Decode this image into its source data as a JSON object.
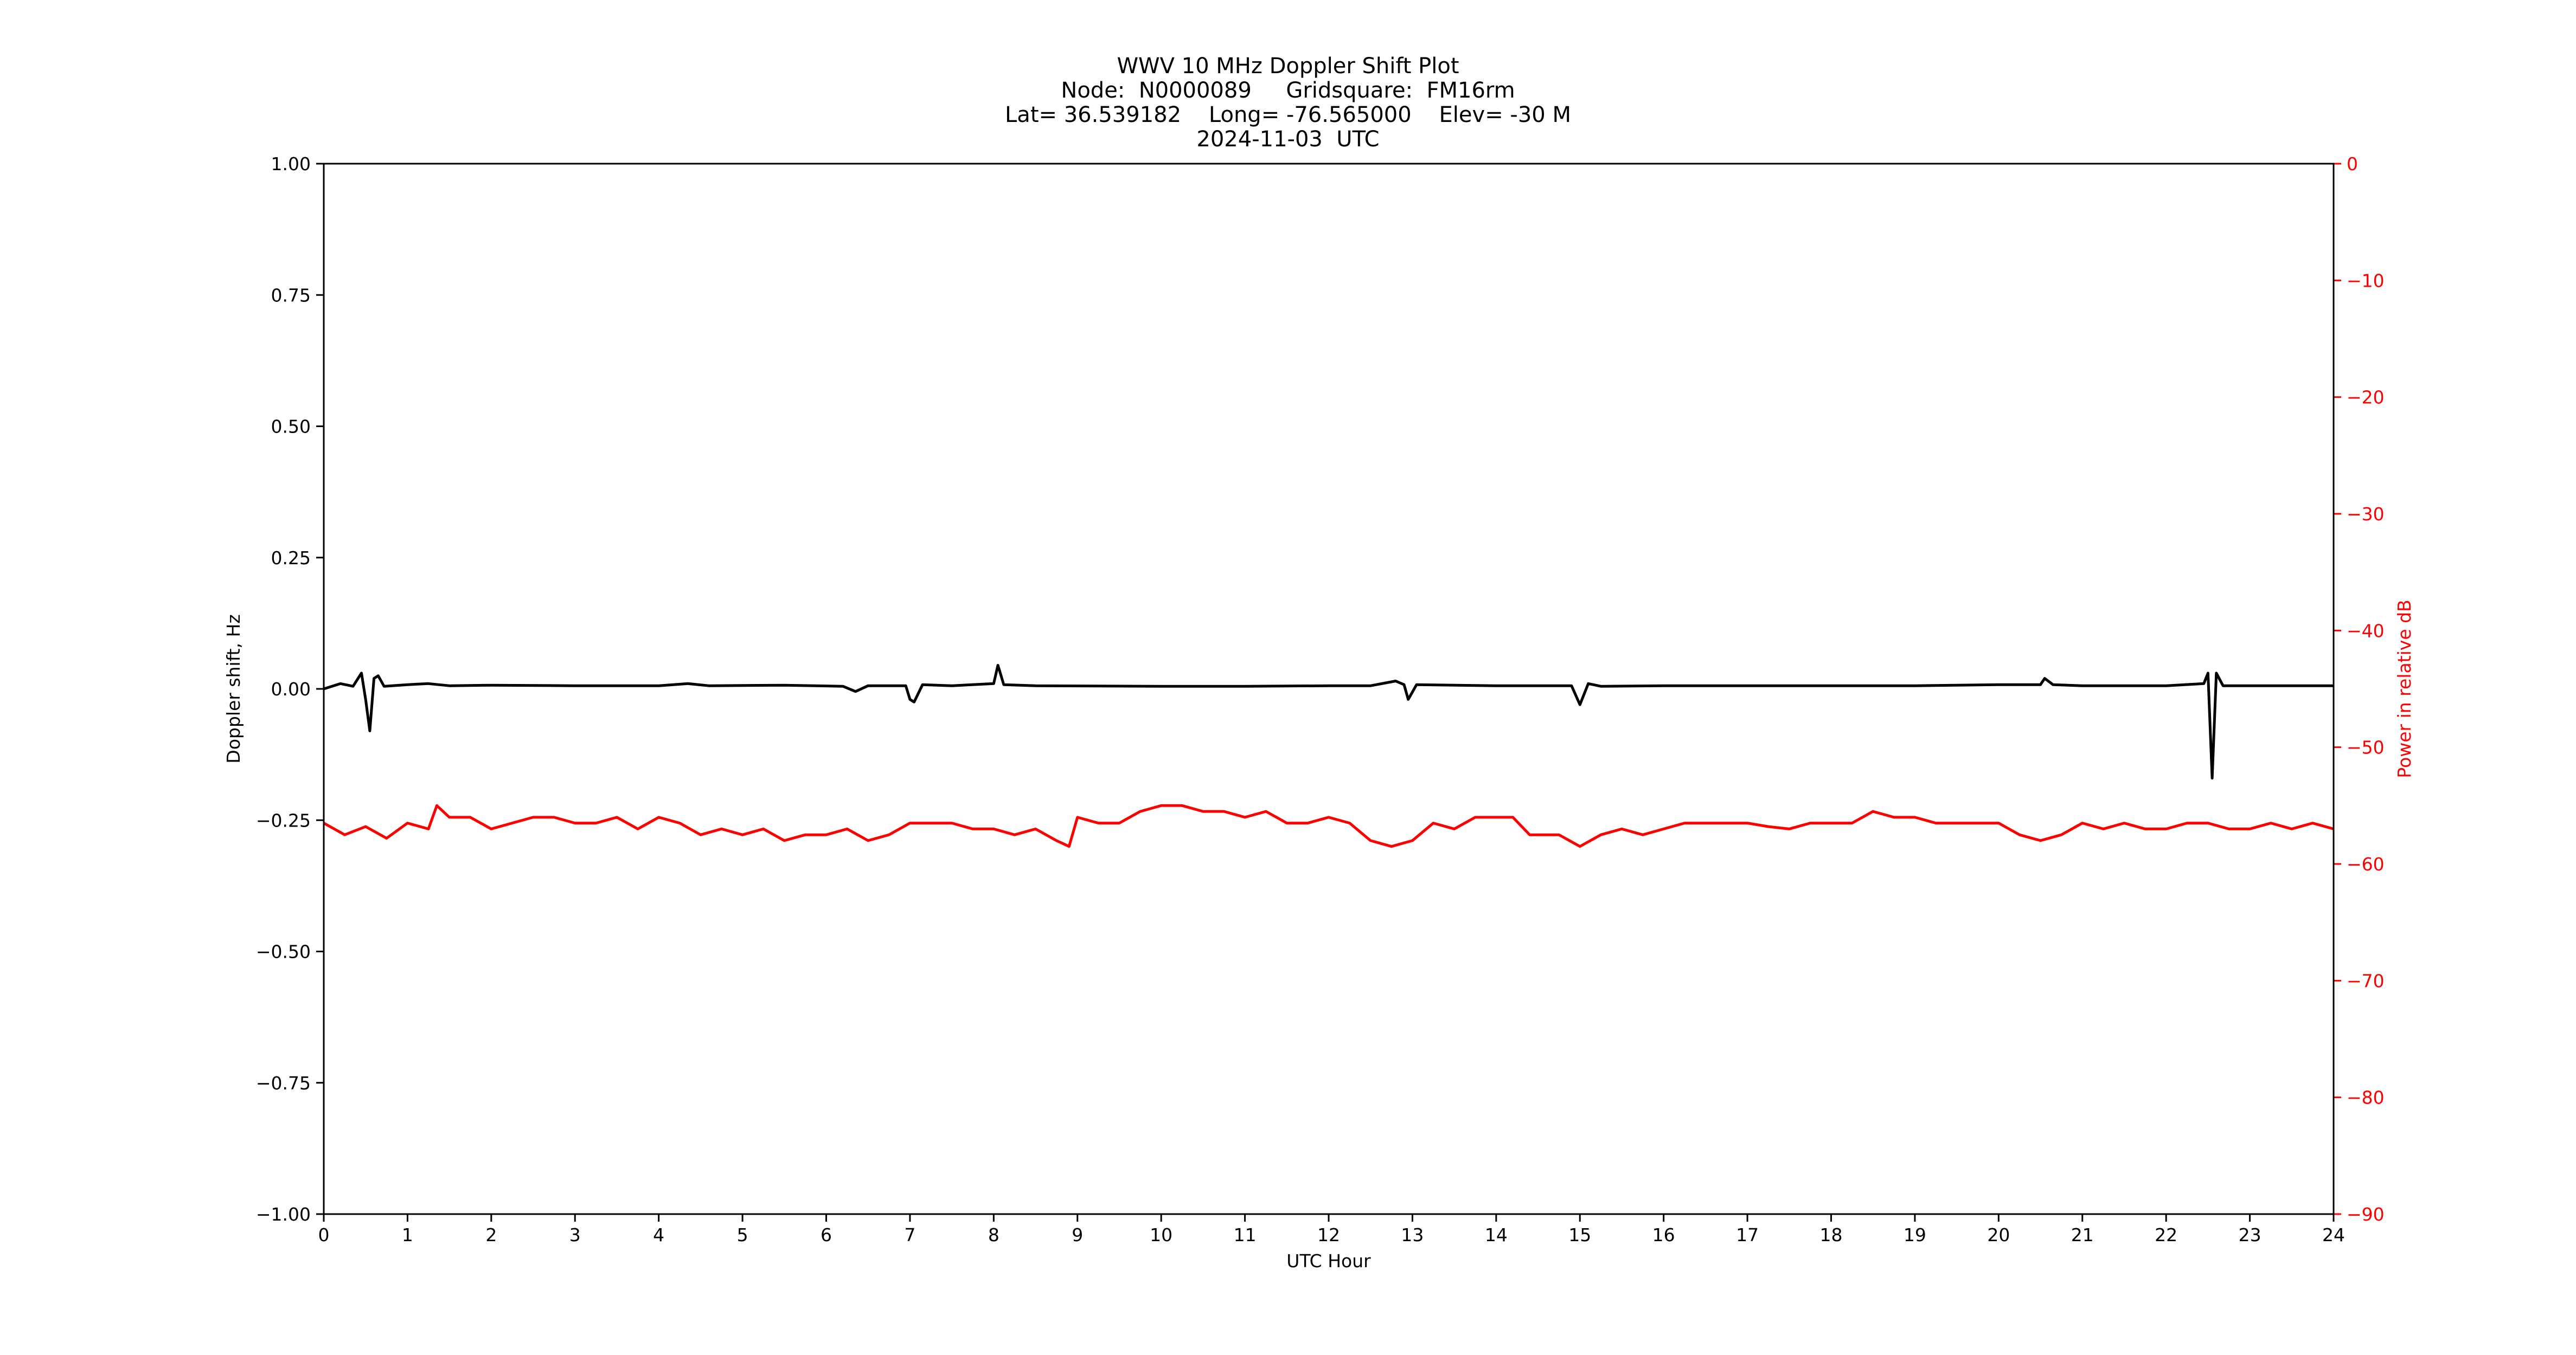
{
  "title_lines": [
    "WWV 10 MHz Doppler Shift Plot",
    "Node:  N0000089     Gridsquare:  FM16rm",
    "Lat= 36.539182    Long= -76.565000    Elev= -30 M",
    "2024-11-03  UTC"
  ],
  "colors": {
    "doppler": "#000000",
    "power": "#ff0000",
    "axis": "#000000"
  },
  "chart_data": {
    "type": "line",
    "title": "WWV 10 MHz Doppler Shift Plot",
    "xlabel": "UTC Hour",
    "ylabel_left": "Doppler shift, Hz",
    "ylabel_right": "Power in relative dB",
    "xlim": [
      0,
      24
    ],
    "ylim_left": [
      -1.0,
      1.0
    ],
    "ylim_right": [
      -90,
      0
    ],
    "grid": false,
    "x_ticks": [
      "0",
      "1",
      "2",
      "3",
      "4",
      "5",
      "6",
      "7",
      "8",
      "9",
      "10",
      "11",
      "12",
      "13",
      "14",
      "15",
      "16",
      "17",
      "18",
      "19",
      "20",
      "21",
      "22",
      "23",
      "24"
    ],
    "y_left_ticks": [
      "1.00",
      "0.75",
      "0.50",
      "0.25",
      "0.00",
      "−0.25",
      "−0.50",
      "−0.75",
      "−1.00"
    ],
    "y_right_ticks": [
      "0",
      "−10",
      "−20",
      "−30",
      "−40",
      "−50",
      "−60",
      "−70",
      "−80",
      "−90"
    ],
    "series": [
      {
        "axis": "left",
        "color": "#000000",
        "points": [
          [
            0,
            0.0
          ],
          [
            0.2,
            0.01
          ],
          [
            0.35,
            0.005
          ],
          [
            0.45,
            0.03
          ],
          [
            0.5,
            -0.02
          ],
          [
            0.55,
            -0.08
          ],
          [
            0.6,
            0.02
          ],
          [
            0.65,
            0.025
          ],
          [
            0.72,
            0.005
          ],
          [
            1.0,
            0.008
          ],
          [
            1.25,
            0.01
          ],
          [
            1.5,
            0.006
          ],
          [
            2.0,
            0.007
          ],
          [
            3.0,
            0.006
          ],
          [
            4.0,
            0.006
          ],
          [
            4.35,
            0.01
          ],
          [
            4.6,
            0.006
          ],
          [
            5.5,
            0.007
          ],
          [
            6.2,
            0.005
          ],
          [
            6.35,
            -0.005
          ],
          [
            6.5,
            0.006
          ],
          [
            6.95,
            0.006
          ],
          [
            7.0,
            -0.02
          ],
          [
            7.05,
            -0.025
          ],
          [
            7.15,
            0.008
          ],
          [
            7.5,
            0.006
          ],
          [
            8.0,
            0.01
          ],
          [
            8.05,
            0.045
          ],
          [
            8.12,
            0.008
          ],
          [
            8.5,
            0.006
          ],
          [
            10.0,
            0.005
          ],
          [
            11.0,
            0.005
          ],
          [
            12.0,
            0.006
          ],
          [
            12.5,
            0.006
          ],
          [
            12.8,
            0.015
          ],
          [
            12.9,
            0.008
          ],
          [
            12.95,
            -0.02
          ],
          [
            13.05,
            0.008
          ],
          [
            14.0,
            0.006
          ],
          [
            14.9,
            0.006
          ],
          [
            15.0,
            -0.03
          ],
          [
            15.1,
            0.01
          ],
          [
            15.25,
            0.005
          ],
          [
            16.0,
            0.006
          ],
          [
            17.0,
            0.006
          ],
          [
            18.0,
            0.006
          ],
          [
            19.0,
            0.006
          ],
          [
            20.0,
            0.008
          ],
          [
            20.5,
            0.008
          ],
          [
            20.55,
            0.02
          ],
          [
            20.65,
            0.008
          ],
          [
            21.0,
            0.006
          ],
          [
            22.0,
            0.006
          ],
          [
            22.45,
            0.01
          ],
          [
            22.5,
            0.03
          ],
          [
            22.55,
            -0.17
          ],
          [
            22.6,
            0.03
          ],
          [
            22.68,
            0.006
          ],
          [
            23.0,
            0.006
          ],
          [
            24.0,
            0.006
          ]
        ]
      },
      {
        "axis": "right",
        "color": "#ff0000",
        "points": [
          [
            0,
            -56.5
          ],
          [
            0.25,
            -57.5
          ],
          [
            0.5,
            -56.8
          ],
          [
            0.75,
            -57.8
          ],
          [
            1.0,
            -56.5
          ],
          [
            1.25,
            -57.0
          ],
          [
            1.35,
            -55.0
          ],
          [
            1.5,
            -56.0
          ],
          [
            1.75,
            -56.0
          ],
          [
            2.0,
            -57.0
          ],
          [
            2.25,
            -56.5
          ],
          [
            2.5,
            -56.0
          ],
          [
            2.75,
            -56.0
          ],
          [
            3.0,
            -56.5
          ],
          [
            3.25,
            -56.5
          ],
          [
            3.5,
            -56.0
          ],
          [
            3.75,
            -57.0
          ],
          [
            4.0,
            -56.0
          ],
          [
            4.25,
            -56.5
          ],
          [
            4.5,
            -57.5
          ],
          [
            4.75,
            -57.0
          ],
          [
            5.0,
            -57.5
          ],
          [
            5.25,
            -57.0
          ],
          [
            5.5,
            -58.0
          ],
          [
            5.75,
            -57.5
          ],
          [
            6.0,
            -57.5
          ],
          [
            6.25,
            -57.0
          ],
          [
            6.5,
            -58.0
          ],
          [
            6.75,
            -57.5
          ],
          [
            7.0,
            -56.5
          ],
          [
            7.25,
            -56.5
          ],
          [
            7.5,
            -56.5
          ],
          [
            7.75,
            -57.0
          ],
          [
            8.0,
            -57.0
          ],
          [
            8.25,
            -57.5
          ],
          [
            8.5,
            -57.0
          ],
          [
            8.75,
            -58.0
          ],
          [
            8.9,
            -58.5
          ],
          [
            9.0,
            -56.0
          ],
          [
            9.25,
            -56.5
          ],
          [
            9.5,
            -56.5
          ],
          [
            9.75,
            -55.5
          ],
          [
            10.0,
            -55.0
          ],
          [
            10.25,
            -55.0
          ],
          [
            10.5,
            -55.5
          ],
          [
            10.75,
            -55.5
          ],
          [
            11.0,
            -56.0
          ],
          [
            11.25,
            -55.5
          ],
          [
            11.5,
            -56.5
          ],
          [
            11.75,
            -56.5
          ],
          [
            12.0,
            -56.0
          ],
          [
            12.25,
            -56.5
          ],
          [
            12.5,
            -58.0
          ],
          [
            12.75,
            -58.5
          ],
          [
            13.0,
            -58.0
          ],
          [
            13.25,
            -56.5
          ],
          [
            13.5,
            -57.0
          ],
          [
            13.75,
            -56.0
          ],
          [
            14.0,
            -56.0
          ],
          [
            14.2,
            -56.0
          ],
          [
            14.4,
            -57.5
          ],
          [
            14.75,
            -57.5
          ],
          [
            15.0,
            -58.5
          ],
          [
            15.25,
            -57.5
          ],
          [
            15.5,
            -57.0
          ],
          [
            15.75,
            -57.5
          ],
          [
            16.0,
            -57.0
          ],
          [
            16.25,
            -56.5
          ],
          [
            16.5,
            -56.5
          ],
          [
            16.75,
            -56.5
          ],
          [
            17.0,
            -56.5
          ],
          [
            17.25,
            -56.8
          ],
          [
            17.5,
            -57.0
          ],
          [
            17.75,
            -56.5
          ],
          [
            18.0,
            -56.5
          ],
          [
            18.25,
            -56.5
          ],
          [
            18.5,
            -55.5
          ],
          [
            18.75,
            -56.0
          ],
          [
            19.0,
            -56.0
          ],
          [
            19.25,
            -56.5
          ],
          [
            19.5,
            -56.5
          ],
          [
            19.75,
            -56.5
          ],
          [
            20.0,
            -56.5
          ],
          [
            20.25,
            -57.5
          ],
          [
            20.5,
            -58.0
          ],
          [
            20.75,
            -57.5
          ],
          [
            21.0,
            -56.5
          ],
          [
            21.25,
            -57.0
          ],
          [
            21.5,
            -56.5
          ],
          [
            21.75,
            -57.0
          ],
          [
            22.0,
            -57.0
          ],
          [
            22.25,
            -56.5
          ],
          [
            22.5,
            -56.5
          ],
          [
            22.75,
            -57.0
          ],
          [
            23.0,
            -57.0
          ],
          [
            23.25,
            -56.5
          ],
          [
            23.5,
            -57.0
          ],
          [
            23.75,
            -56.5
          ],
          [
            24.0,
            -57.0
          ]
        ]
      }
    ]
  }
}
